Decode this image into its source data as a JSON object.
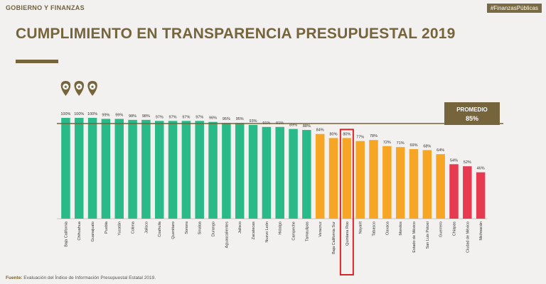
{
  "header": {
    "section_label": "GOBIERNO Y FINANZAS",
    "hashtag": "#FinanzasPúblicas",
    "title": "CUMPLIMIENTO EN TRANSPARENCIA PRESUPUESTAL 2019"
  },
  "footer": {
    "source_label": "Fuente:",
    "source_text": "Evaluación del Índice de Información Presupuestal Estatal 2019."
  },
  "colors": {
    "green": "#2ab989",
    "orange": "#f6a524",
    "red": "#e63a50",
    "gold": "#75643c",
    "highlight": "#d3262b"
  },
  "chart_data": {
    "type": "bar",
    "title": "CUMPLIMIENTO EN TRANSPARENCIA PRESUPUESTAL 2019",
    "xlabel": "",
    "ylabel": "",
    "ylim": [
      0,
      100
    ],
    "categories": [
      "Baja California",
      "Chihuahua",
      "Guanajuato",
      "Puebla",
      "Yucatán",
      "Colima",
      "Jalisco",
      "Coahuila",
      "Querétaro",
      "Sonora",
      "Sinaloa",
      "Durango",
      "Aguascalientes",
      "Jalisco",
      "Zacatecas",
      "Nuevo León",
      "Hidalgo",
      "Campeche",
      "Tamaulipas",
      "Veracruz",
      "Baja California Sur",
      "Quintana Roo",
      "Nayarit",
      "Tabasco",
      "Oaxaca",
      "Morelos",
      "Estado de México",
      "San Luis Potosí",
      "Guerrero",
      "Chiapas",
      "Ciudad de México",
      "Michoacán"
    ],
    "values": [
      100,
      100,
      100,
      99,
      99,
      98,
      98,
      97,
      97,
      97,
      97,
      96,
      95,
      95,
      93,
      91,
      91,
      89,
      88,
      84,
      80,
      80,
      77,
      78,
      72,
      71,
      69,
      68,
      64,
      54,
      52,
      46
    ],
    "value_labels": [
      "100%",
      "100%",
      "100%",
      "99%",
      "99%",
      "98%",
      "98%",
      "97%",
      "97%",
      "97%",
      "97%",
      "96%",
      "95%",
      "95%",
      "93%",
      "91%",
      "91%",
      "89%",
      "88%",
      "84%",
      "80%",
      "80%",
      "77%",
      "78%",
      "72%",
      "71%",
      "69%",
      "68%",
      "64%",
      "54%",
      "52%",
      "46%"
    ],
    "bar_colors": [
      "green",
      "green",
      "green",
      "green",
      "green",
      "green",
      "green",
      "green",
      "green",
      "green",
      "green",
      "green",
      "green",
      "green",
      "green",
      "green",
      "green",
      "green",
      "green",
      "orange",
      "orange",
      "orange",
      "orange",
      "orange",
      "orange",
      "orange",
      "orange",
      "orange",
      "orange",
      "red",
      "red",
      "red"
    ],
    "top_three_markers": 3,
    "highlighted_category": "Quintana Roo",
    "average": {
      "label": "PROMEDIO",
      "value": 85,
      "value_label": "85%"
    }
  }
}
